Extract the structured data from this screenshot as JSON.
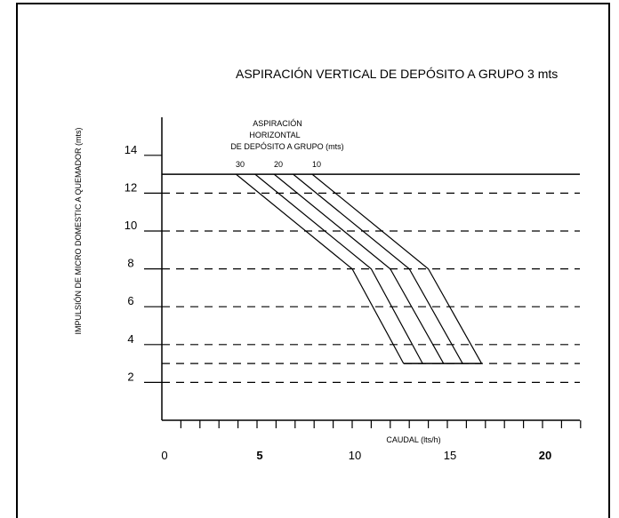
{
  "chart_data": {
    "type": "line",
    "title": "ASPIRACIÓN VERTICAL DE DEPÓSITO A GRUPO 3 mts",
    "xlabel": "CAUDAL (lts/h)",
    "ylabel": "IMPULSIÓN DE MICRO DOMESTIC A QUEMADOR (mts)",
    "xlim": [
      0,
      22
    ],
    "ylim": [
      0,
      14
    ],
    "x_ticks": [
      0,
      5,
      10,
      15,
      20
    ],
    "x_tick_labels": [
      "0",
      "5",
      "10",
      "15",
      "20"
    ],
    "y_ticks": [
      2,
      4,
      6,
      8,
      10,
      12,
      14
    ],
    "y_tick_labels": [
      "2",
      "4",
      "6",
      "8",
      "10",
      "12",
      "14"
    ],
    "dashed_levels": [
      3,
      2,
      4,
      6,
      8,
      10,
      12
    ],
    "solid_level": 13,
    "annotation": {
      "line1": "ASPIRACIÓN",
      "line2": "HORIZONTAL",
      "line3": "DE DEPÓSITO A GRUPO (mts)",
      "series_labels": [
        "30",
        "20",
        "10"
      ]
    },
    "series": [
      {
        "points": [
          [
            3.9,
            13
          ],
          [
            10.0,
            8
          ],
          [
            12.7,
            3
          ]
        ]
      },
      {
        "points": [
          [
            4.9,
            13
          ],
          [
            11.0,
            8
          ],
          [
            13.7,
            3
          ]
        ]
      },
      {
        "points": [
          [
            5.9,
            13
          ],
          [
            12.0,
            8
          ],
          [
            14.8,
            3
          ]
        ]
      },
      {
        "points": [
          [
            6.9,
            13
          ],
          [
            13.0,
            8
          ],
          [
            15.8,
            3
          ]
        ]
      },
      {
        "points": [
          [
            7.9,
            13
          ],
          [
            14.0,
            8
          ],
          [
            16.8,
            3
          ]
        ]
      }
    ]
  }
}
